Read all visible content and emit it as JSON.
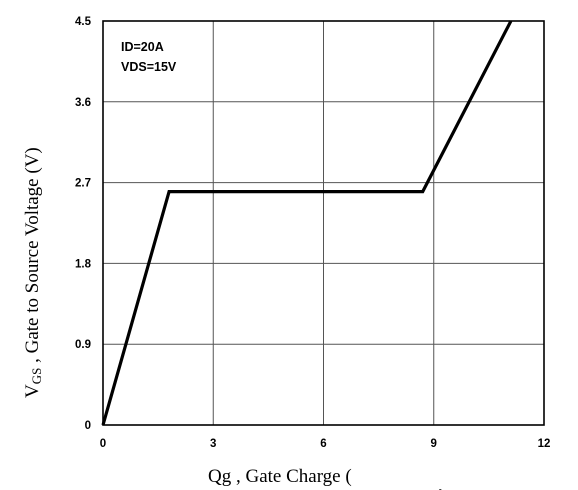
{
  "chart_data": {
    "type": "line",
    "title": "",
    "xlabel": "Qg , Gate Charge (",
    "xlabel_tail": "ˎ",
    "ylabel_prefix": "V",
    "ylabel_sub": "GS",
    "ylabel_rest": " , Gate to Source Voltage (V)",
    "xlim": [
      0,
      12
    ],
    "ylim": [
      0,
      4.5
    ],
    "x_ticks": [
      0,
      3,
      6,
      9,
      12
    ],
    "y_ticks": [
      0,
      0.9,
      1.8,
      2.7,
      3.6,
      4.5
    ],
    "x_tick_labels": [
      "0",
      "3",
      "6",
      "9",
      "12"
    ],
    "y_tick_labels": [
      "0",
      "0.9",
      "1.8",
      "2.7",
      "3.6",
      "4.5"
    ],
    "grid": true,
    "annotations": [
      "ID=20A",
      "VDS=15V"
    ],
    "series": [
      {
        "x": [
          0,
          1.8,
          8.7,
          11.1
        ],
        "y": [
          0,
          2.6,
          2.6,
          4.5
        ],
        "color": "#000000"
      }
    ]
  }
}
